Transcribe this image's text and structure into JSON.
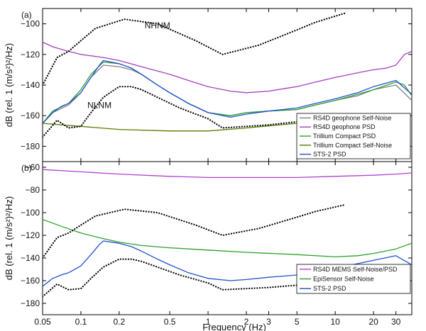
{
  "figure": {
    "xlabel": "Frequency (Hz)",
    "x_ticks": [
      {
        "v": 0.05,
        "label": "0.05"
      },
      {
        "v": 0.1,
        "label": "0.1"
      },
      {
        "v": 0.2,
        "label": "0.2"
      },
      {
        "v": 0.5,
        "label": "0.5"
      },
      {
        "v": 1,
        "label": "1"
      },
      {
        "v": 2,
        "label": "2"
      },
      {
        "v": 3,
        "label": "3"
      },
      {
        "v": 5,
        "label": "5"
      },
      {
        "v": 10,
        "label": "10"
      },
      {
        "v": 20,
        "label": "20"
      },
      {
        "v": 30,
        "label": "30"
      }
    ]
  },
  "chart_data": [
    {
      "type": "line",
      "panel": "(a)",
      "xscale": "log",
      "xlim": [
        0.05,
        40
      ],
      "ylim": [
        -190,
        -90
      ],
      "ylabel": "dB (rel. 1 (m/s²)²/Hz)",
      "yticks": [
        -100,
        -120,
        -140,
        -160,
        -180
      ],
      "grid": false,
      "legend_position": "bottom-right",
      "annotations": [
        {
          "text": "NHNM",
          "x": 0.4,
          "y": -103
        },
        {
          "text": "NLNM",
          "x": 0.14,
          "y": -155
        }
      ],
      "series": [
        {
          "name": "RS4D geophone Self-Noise",
          "color": "#808080",
          "dash": "solid",
          "x": [
            0.05,
            0.06,
            0.08,
            0.1,
            0.12,
            0.15,
            0.2,
            0.25,
            0.3,
            0.4,
            0.5,
            0.7,
            1,
            1.5,
            2,
            3,
            5,
            7,
            10,
            15,
            20,
            30,
            40
          ],
          "y": [
            -165,
            -158,
            -153,
            -145,
            -135,
            -127,
            -128,
            -130,
            -133,
            -140,
            -145,
            -152,
            -158,
            -160,
            -158,
            -157,
            -156,
            -153,
            -150,
            -147,
            -143,
            -140,
            -150
          ]
        },
        {
          "name": "RS4D geophone PSD",
          "color": "#a040c0",
          "dash": "solid",
          "x": [
            0.05,
            0.06,
            0.08,
            0.1,
            0.15,
            0.2,
            0.3,
            0.5,
            0.7,
            1,
            1.5,
            2,
            3,
            5,
            7,
            10,
            15,
            20,
            25,
            30,
            35,
            40
          ],
          "y": [
            -112,
            -115,
            -118,
            -120,
            -122,
            -124,
            -128,
            -133,
            -137,
            -141,
            -144,
            -145,
            -144,
            -141,
            -138,
            -135,
            -132,
            -130,
            -129,
            -127,
            -120,
            -118
          ]
        },
        {
          "name": "Trillium Compact PSD",
          "color": "#2ca02c",
          "dash": "solid",
          "x": [
            0.05,
            0.06,
            0.08,
            0.1,
            0.12,
            0.15,
            0.2,
            0.25,
            0.3,
            0.4,
            0.5,
            0.7,
            1,
            1.5,
            2,
            3,
            5,
            7,
            10,
            15,
            20,
            30,
            35,
            40
          ],
          "y": [
            -165,
            -157,
            -152,
            -143,
            -133,
            -125,
            -126,
            -129,
            -133,
            -140,
            -145,
            -152,
            -158,
            -160,
            -158,
            -157,
            -156,
            -153,
            -150,
            -146,
            -143,
            -138,
            -140,
            -147
          ]
        },
        {
          "name": "Trillium Compact Self-Noise",
          "color": "#5a7a00",
          "dash": "solid",
          "x": [
            0.05,
            0.1,
            0.2,
            0.5,
            1,
            2,
            5,
            10
          ],
          "y": [
            -165,
            -167,
            -169,
            -170,
            -170,
            -168,
            -165,
            -162
          ]
        },
        {
          "name": "STS-2 PSD",
          "color": "#2050d0",
          "dash": "solid",
          "x": [
            0.05,
            0.06,
            0.07,
            0.08,
            0.1,
            0.12,
            0.14,
            0.15,
            0.2,
            0.25,
            0.3,
            0.4,
            0.5,
            0.7,
            1,
            1.5,
            2,
            3,
            5,
            7,
            10,
            15,
            20,
            30,
            40
          ],
          "y": [
            -165,
            -158,
            -154,
            -152,
            -145,
            -135,
            -127,
            -124,
            -126,
            -129,
            -133,
            -140,
            -145,
            -152,
            -158,
            -161,
            -159,
            -157,
            -155,
            -152,
            -149,
            -145,
            -141,
            -137,
            -146
          ]
        },
        {
          "name": "",
          "color": "#000000",
          "dash": "dotted",
          "x": [
            0.05,
            0.065,
            0.08,
            0.1,
            0.13,
            0.22,
            0.4,
            0.8,
            1.3,
            2.5,
            5,
            7,
            10,
            12
          ],
          "y": [
            -140,
            -122,
            -118,
            -111,
            -103,
            -97,
            -100,
            -111,
            -120,
            -114,
            -104,
            -99,
            -95,
            -93
          ]
        },
        {
          "name": "",
          "color": "#000000",
          "dash": "dotted",
          "x": [
            0.05,
            0.065,
            0.08,
            0.1,
            0.12,
            0.15,
            0.2,
            0.25,
            0.3,
            0.4,
            0.6,
            1,
            1.3,
            2,
            3,
            5,
            7,
            10
          ],
          "y": [
            -174,
            -163,
            -168,
            -167,
            -158,
            -148,
            -141,
            -141,
            -143,
            -148,
            -155,
            -162,
            -168,
            -167,
            -166,
            -164,
            -163,
            -162
          ]
        }
      ]
    },
    {
      "type": "line",
      "panel": "(b)",
      "xscale": "log",
      "xlim": [
        0.05,
        40
      ],
      "ylim": [
        -190,
        -55
      ],
      "ylabel": "dB (rel. 1 (m/s²)²/Hz)",
      "yticks": [
        -60,
        -80,
        -100,
        -120,
        -140,
        -160,
        -180
      ],
      "grid": false,
      "legend_position": "bottom-right",
      "series": [
        {
          "name": "RS4D MEMS Self-Noise/PSD",
          "color": "#b040d0",
          "dash": "solid",
          "x": [
            0.05,
            0.1,
            0.2,
            0.5,
            1,
            2,
            5,
            10,
            20,
            30,
            40
          ],
          "y": [
            -62,
            -64,
            -66,
            -68,
            -69,
            -69,
            -69,
            -68,
            -67,
            -66,
            -65
          ]
        },
        {
          "name": "EpiSensor Self-Noise",
          "color": "#2ca02c",
          "dash": "solid",
          "x": [
            0.05,
            0.07,
            0.1,
            0.15,
            0.2,
            0.3,
            0.5,
            0.7,
            1,
            2,
            5,
            10,
            15,
            20,
            30,
            40
          ],
          "y": [
            -106,
            -112,
            -118,
            -123,
            -126,
            -129,
            -131,
            -132,
            -133,
            -135,
            -137,
            -139,
            -138,
            -136,
            -132,
            -127
          ]
        },
        {
          "name": "STS-2 PSD",
          "color": "#2050d0",
          "dash": "solid",
          "x": [
            0.05,
            0.06,
            0.07,
            0.08,
            0.1,
            0.12,
            0.14,
            0.15,
            0.2,
            0.25,
            0.3,
            0.4,
            0.5,
            0.7,
            1,
            1.5,
            2,
            3,
            5,
            7,
            10,
            15,
            20,
            30,
            40
          ],
          "y": [
            -165,
            -158,
            -155,
            -153,
            -147,
            -137,
            -128,
            -125,
            -127,
            -130,
            -134,
            -141,
            -146,
            -153,
            -158,
            -160,
            -159,
            -157,
            -155,
            -152,
            -149,
            -145,
            -142,
            -138,
            -146
          ]
        },
        {
          "name": "",
          "color": "#000000",
          "dash": "dotted",
          "x": [
            0.05,
            0.065,
            0.08,
            0.1,
            0.13,
            0.22,
            0.4,
            0.8,
            1.3,
            2.5,
            5,
            7,
            10,
            12
          ],
          "y": [
            -140,
            -122,
            -118,
            -111,
            -103,
            -97,
            -100,
            -111,
            -120,
            -114,
            -104,
            -99,
            -95,
            -93
          ]
        },
        {
          "name": "",
          "color": "#000000",
          "dash": "dotted",
          "x": [
            0.05,
            0.065,
            0.08,
            0.1,
            0.12,
            0.15,
            0.2,
            0.25,
            0.3,
            0.4,
            0.6,
            1,
            1.3,
            2,
            3,
            5,
            7,
            10
          ],
          "y": [
            -174,
            -163,
            -168,
            -167,
            -158,
            -148,
            -141,
            -141,
            -143,
            -148,
            -155,
            -162,
            -168,
            -167,
            -166,
            -164,
            -163,
            -162
          ]
        }
      ]
    }
  ]
}
